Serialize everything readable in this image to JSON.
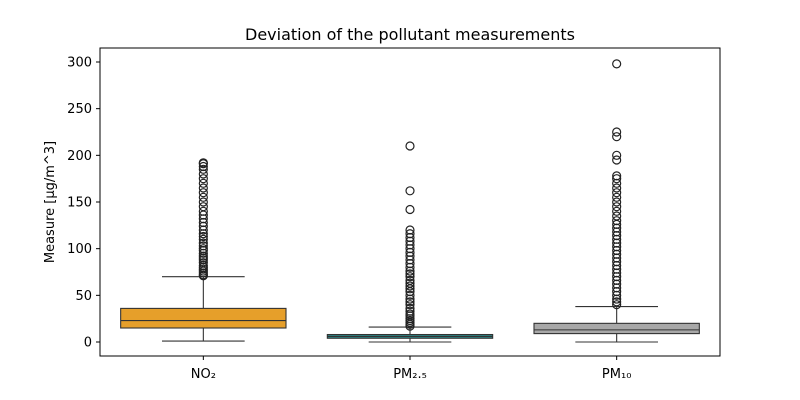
{
  "chart_data": {
    "type": "box",
    "title": "Deviation of the pollutant measurements",
    "xlabel": "",
    "ylabel": "Measure [µg/m^3]",
    "ylim": [
      -15,
      315
    ],
    "yticks": [
      0,
      50,
      100,
      150,
      200,
      250,
      300
    ],
    "grid": false,
    "legend": "none",
    "categories": [
      "NO₂",
      "PM₂.₅",
      "PM₁₀"
    ],
    "boxes": [
      {
        "category": "NO₂",
        "color": "#E69F2A",
        "whisker_low": 1,
        "q1": 15,
        "median": 23,
        "q3": 36,
        "whisker_high": 70,
        "outliers": [
          71,
          72,
          74,
          76,
          78,
          80,
          82,
          85,
          88,
          90,
          92,
          95,
          98,
          100,
          103,
          106,
          110,
          113,
          116,
          120,
          124,
          128,
          132,
          136,
          140,
          145,
          150,
          155,
          160,
          165,
          170,
          175,
          180,
          185,
          188,
          191,
          192
        ]
      },
      {
        "category": "PM₂.₅",
        "color": "#2E8B8B",
        "whisker_low": 0,
        "q1": 4,
        "median": 6,
        "q3": 8,
        "whisker_high": 16,
        "outliers": [
          17,
          19,
          21,
          23,
          25,
          28,
          30,
          33,
          36,
          40,
          43,
          46,
          50,
          54,
          57,
          60,
          63,
          66,
          70,
          73,
          76,
          80,
          84,
          88,
          92,
          96,
          100,
          104,
          108,
          112,
          116,
          120,
          142,
          162,
          210
        ]
      },
      {
        "category": "PM₁₀",
        "color": "#A8A8A8",
        "whisker_low": 0,
        "q1": 9,
        "median": 13,
        "q3": 20,
        "whisker_high": 38,
        "outliers": [
          40,
          43,
          46,
          50,
          54,
          58,
          62,
          66,
          70,
          74,
          78,
          82,
          86,
          90,
          94,
          98,
          102,
          106,
          110,
          114,
          118,
          122,
          126,
          130,
          135,
          140,
          145,
          150,
          155,
          160,
          165,
          170,
          175,
          178,
          195,
          200,
          220,
          225,
          298
        ]
      }
    ]
  }
}
